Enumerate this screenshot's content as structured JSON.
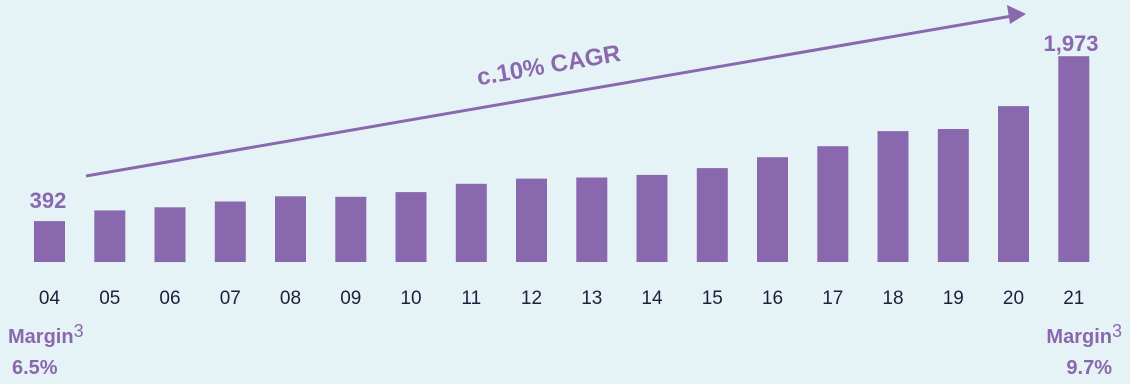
{
  "chart_data": {
    "type": "bar",
    "categories": [
      "04",
      "05",
      "06",
      "07",
      "08",
      "09",
      "10",
      "11",
      "12",
      "13",
      "14",
      "15",
      "16",
      "17",
      "18",
      "19",
      "20",
      "21"
    ],
    "values": [
      392,
      495,
      525,
      580,
      630,
      625,
      670,
      750,
      800,
      810,
      835,
      900,
      1005,
      1110,
      1255,
      1275,
      1495,
      1973
    ],
    "ylim": [
      0,
      2100
    ],
    "annotations": {
      "start_label": "392",
      "end_label": "1,973",
      "trend_label": "c.10% CAGR"
    },
    "colors": {
      "bar": "#8a68ad",
      "background": "#e6f3f6",
      "tick": "#1f1f3a"
    }
  },
  "margins": {
    "left": {
      "label": "Margin",
      "footnote": "3",
      "value": "6.5%"
    },
    "right": {
      "label": "Margin",
      "footnote": "3",
      "value": "9.7%"
    }
  }
}
